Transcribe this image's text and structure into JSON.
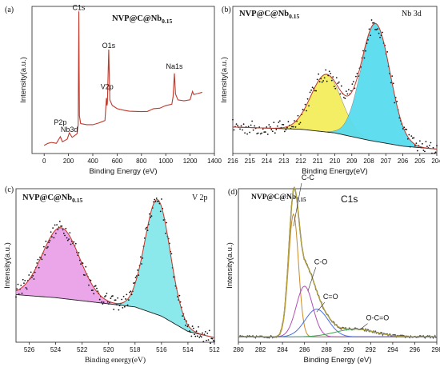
{
  "chart_data": [
    {
      "panel": "(a)",
      "type": "line",
      "title": "NVP@C@Nb",
      "title_sub": "0.15",
      "xlabel": "Binding Energy (eV)",
      "ylabel": "Intensity(a.u.)",
      "xlim": [
        -100,
        1400
      ],
      "ylim": [
        0,
        100
      ],
      "x_reversed": false,
      "xticks": [
        0,
        200,
        400,
        600,
        800,
        1000,
        1200,
        1400
      ],
      "xtick_labels": [
        "0",
        "200",
        "400",
        "600",
        "800",
        "1000",
        "1200",
        "1400"
      ],
      "annotations": [
        {
          "text": "C1s",
          "x": 285,
          "y": 96
        },
        {
          "text": "O1s",
          "x": 531,
          "y": 70
        },
        {
          "text": "V2p",
          "x": 517,
          "y": 42
        },
        {
          "text": "Na1s",
          "x": 1071,
          "y": 56
        },
        {
          "text": "P2p",
          "x": 133,
          "y": 18
        },
        {
          "text": "Nb3d",
          "x": 207,
          "y": 13
        }
      ],
      "series": [
        {
          "color": "#c0392b",
          "x": [
            0,
            30,
            60,
            100,
            133,
            150,
            190,
            207,
            230,
            270,
            280,
            285,
            290,
            300,
            350,
            400,
            450,
            500,
            512,
            517,
            520,
            531,
            540,
            560,
            600,
            650,
            700,
            750,
            800,
            850,
            900,
            950,
            1000,
            1050,
            1060,
            1071,
            1080,
            1100,
            1150,
            1200,
            1220,
            1230,
            1260,
            1300
          ],
          "y": [
            6,
            6.5,
            7,
            7.5,
            12,
            8.5,
            9.5,
            14,
            10.5,
            13,
            20,
            97,
            26,
            20,
            19,
            20,
            21,
            23,
            38,
            33,
            34,
            71,
            36,
            33,
            30,
            29,
            29,
            28.5,
            28.5,
            29,
            30,
            31,
            32,
            33,
            38,
            55,
            40,
            36,
            36,
            37,
            42,
            40,
            41,
            42
          ]
        }
      ]
    },
    {
      "panel": "(b)",
      "type": "line",
      "title": "NVP@C@Nb",
      "title_sub": "0.15",
      "corner_label": "Nb 3d",
      "xlabel": "Binding Energy(eV)",
      "ylabel": "Intensity(a.u.)",
      "xlim": [
        216,
        204
      ],
      "ylim": [
        0,
        100
      ],
      "x_reversed": true,
      "xticks": [
        216,
        215,
        214,
        213,
        212,
        211,
        210,
        209,
        208,
        207,
        206,
        205,
        204
      ],
      "xtick_labels": [
        "216",
        "215",
        "214",
        "213",
        "212",
        "211",
        "210",
        "209",
        "208",
        "207",
        "206",
        "205",
        "204"
      ],
      "peaks": [
        {
          "center": 210.5,
          "height": 39,
          "sigma": 0.9,
          "fill": "#f4ee5c"
        },
        {
          "center": 207.6,
          "height": 80,
          "sigma": 0.85,
          "fill": "#59dcf0"
        }
      ],
      "background": {
        "x": [
          216,
          212,
          210,
          208,
          206,
          204
        ],
        "y": [
          18,
          16.5,
          14,
          9,
          5,
          3
        ]
      }
    },
    {
      "panel": "(c)",
      "type": "line",
      "title": "NVP@C@Nb",
      "title_sub": "0.15",
      "corner_label": "V 2p",
      "xlabel": "Binding energy(eV)",
      "ylabel": "Intensity(a.u.)",
      "xlim": [
        527,
        512
      ],
      "ylim": [
        0,
        100
      ],
      "x_reversed": true,
      "xticks": [
        526,
        524,
        522,
        520,
        518,
        516,
        514,
        512
      ],
      "xtick_labels": [
        "526",
        "524",
        "522",
        "520",
        "518",
        "516",
        "514",
        "512"
      ],
      "peaks": [
        {
          "center": 523.6,
          "height": 46,
          "sigma": 1.4,
          "fill": "#e9a2e8"
        },
        {
          "center": 516.3,
          "height": 75,
          "sigma": 0.95,
          "fill": "#86e8ea"
        }
      ],
      "background": {
        "x": [
          527,
          524,
          520,
          518,
          516,
          514,
          512
        ],
        "y": [
          31,
          29,
          25,
          23,
          17,
          7,
          3
        ]
      }
    },
    {
      "panel": "(d)",
      "type": "line",
      "title": "NVP@C@Nb",
      "title_sub": "0.15",
      "corner_label": "C1s",
      "xlabel": "Binding Energy (eV)",
      "ylabel": "Intensity(a.u.)",
      "xlim": [
        280,
        298
      ],
      "ylim": [
        0,
        100
      ],
      "x_reversed": false,
      "xticks": [
        280,
        282,
        284,
        286,
        288,
        290,
        292,
        294,
        296,
        298
      ],
      "xtick_labels": [
        "280",
        "282",
        "284",
        "286",
        "288",
        "290",
        "292",
        "294",
        "296",
        "298"
      ],
      "annotations": [
        {
          "text": "C-C",
          "x": 285.0
        },
        {
          "text": "C-O",
          "x": 286.3
        },
        {
          "text": "C=O",
          "x": 287.1
        },
        {
          "text": "O-C=O",
          "x": 291.0
        }
      ],
      "components": [
        {
          "name": "C-C",
          "center": 285.0,
          "height": 80,
          "sigma": 0.45,
          "color": "#c98a2a"
        },
        {
          "name": "C-O",
          "center": 286.0,
          "height": 33,
          "sigma": 0.75,
          "color": "#b54cb5"
        },
        {
          "name": "C=O",
          "center": 287.1,
          "height": 18,
          "sigma": 1.05,
          "color": "#4a6ee0"
        },
        {
          "name": "O-C=O",
          "center": 290.6,
          "height": 5,
          "sigma": 1.8,
          "color": "#3fa850"
        }
      ],
      "baseline": 3.5
    }
  ]
}
